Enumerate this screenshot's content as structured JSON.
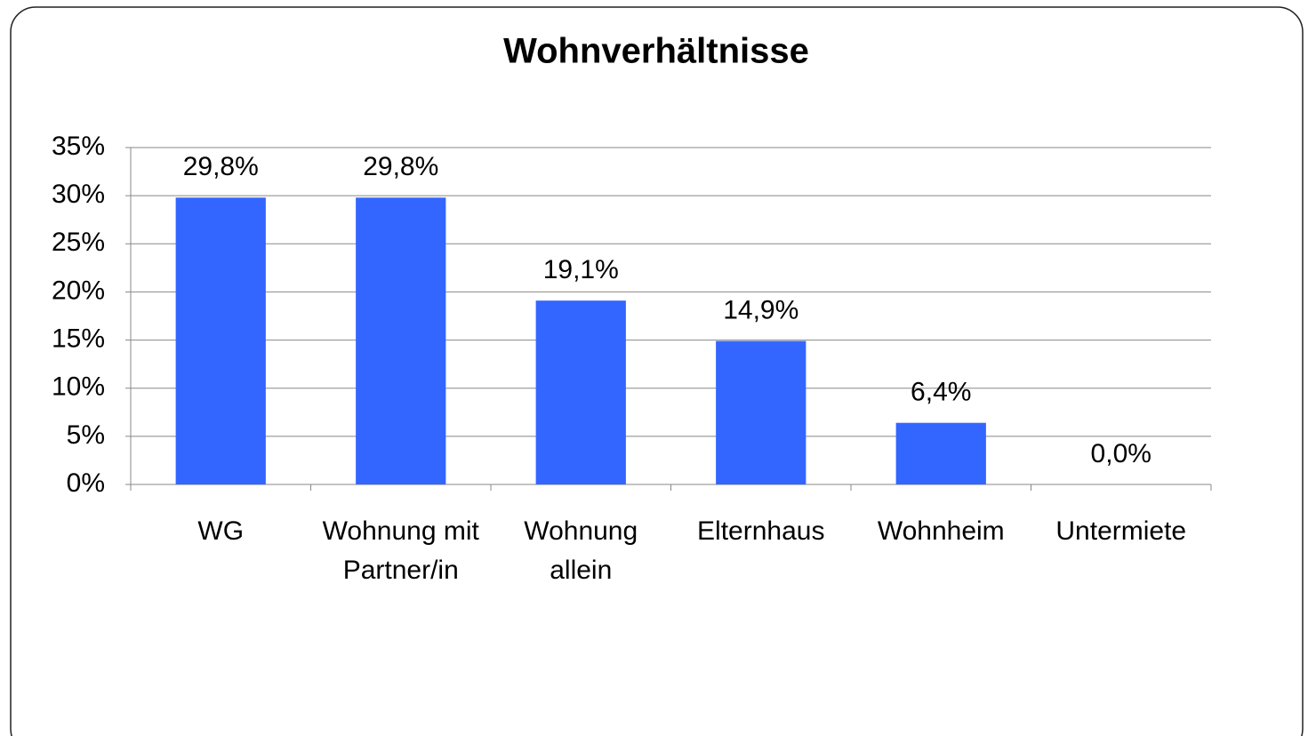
{
  "chart_data": {
    "type": "bar",
    "title": "Wohnverhältnisse",
    "categories": [
      "WG",
      "Wohnung mit Partner/in",
      "Wohnung allein",
      "Elternhaus",
      "Wohnheim",
      "Untermiete"
    ],
    "values": [
      29.8,
      29.8,
      19.1,
      14.9,
      6.4,
      0.0
    ],
    "value_labels": [
      "29,8%",
      "29,8%",
      "19,1%",
      "14,9%",
      "6,4%",
      "0,0%"
    ],
    "color": "#3366ff",
    "ylim": [
      0,
      35
    ],
    "yticks": [
      {
        "value": 0,
        "label": "0%"
      },
      {
        "value": 5,
        "label": "5%"
      },
      {
        "value": 10,
        "label": "10%"
      },
      {
        "value": 15,
        "label": "15%"
      },
      {
        "value": 20,
        "label": "20%"
      },
      {
        "value": 25,
        "label": "25%"
      },
      {
        "value": 30,
        "label": "30%"
      },
      {
        "value": 35,
        "label": "35%"
      }
    ],
    "grid": true
  }
}
